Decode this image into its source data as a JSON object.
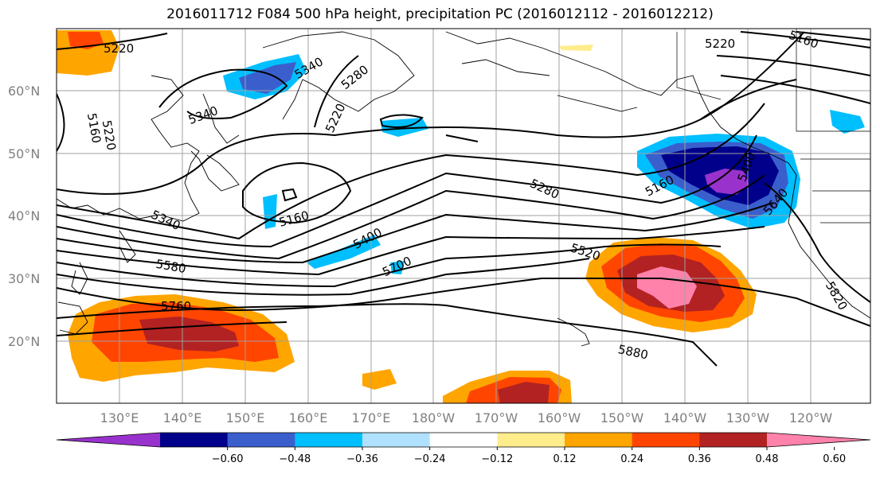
{
  "title": "2016011712 F084 500 hPa height, precipitation PC (2016012112 - 2016012212)",
  "axes": {
    "lat_labels": [
      "60°N",
      "50°N",
      "40°N",
      "30°N",
      "20°N"
    ],
    "lon_labels": [
      "130°E",
      "140°E",
      "150°E",
      "160°E",
      "170°E",
      "180°W",
      "170°W",
      "160°W",
      "150°W",
      "140°W",
      "130°W",
      "120°W"
    ]
  },
  "contour_labels": [
    "5220",
    "5160",
    "5340",
    "5280",
    "5220",
    "5340",
    "5220",
    "5160",
    "5160",
    "5220",
    "5160",
    "5340",
    "5400",
    "5280",
    "5520",
    "5580",
    "5700",
    "5760",
    "5880",
    "5400",
    "5640",
    "5820"
  ],
  "colorbar": {
    "ticks": [
      "−0.60",
      "−0.48",
      "−0.36",
      "−0.24",
      "−0.12",
      "0.12",
      "0.24",
      "0.36",
      "0.48",
      "0.60"
    ],
    "colors": [
      "#9932CC",
      "#00008B",
      "#3A5FCD",
      "#00BFFF",
      "#B0E2FF",
      "#FFFFFF",
      "#FFEC8B",
      "#FFA500",
      "#FF4500",
      "#B22222",
      "#FF82AB"
    ]
  }
}
